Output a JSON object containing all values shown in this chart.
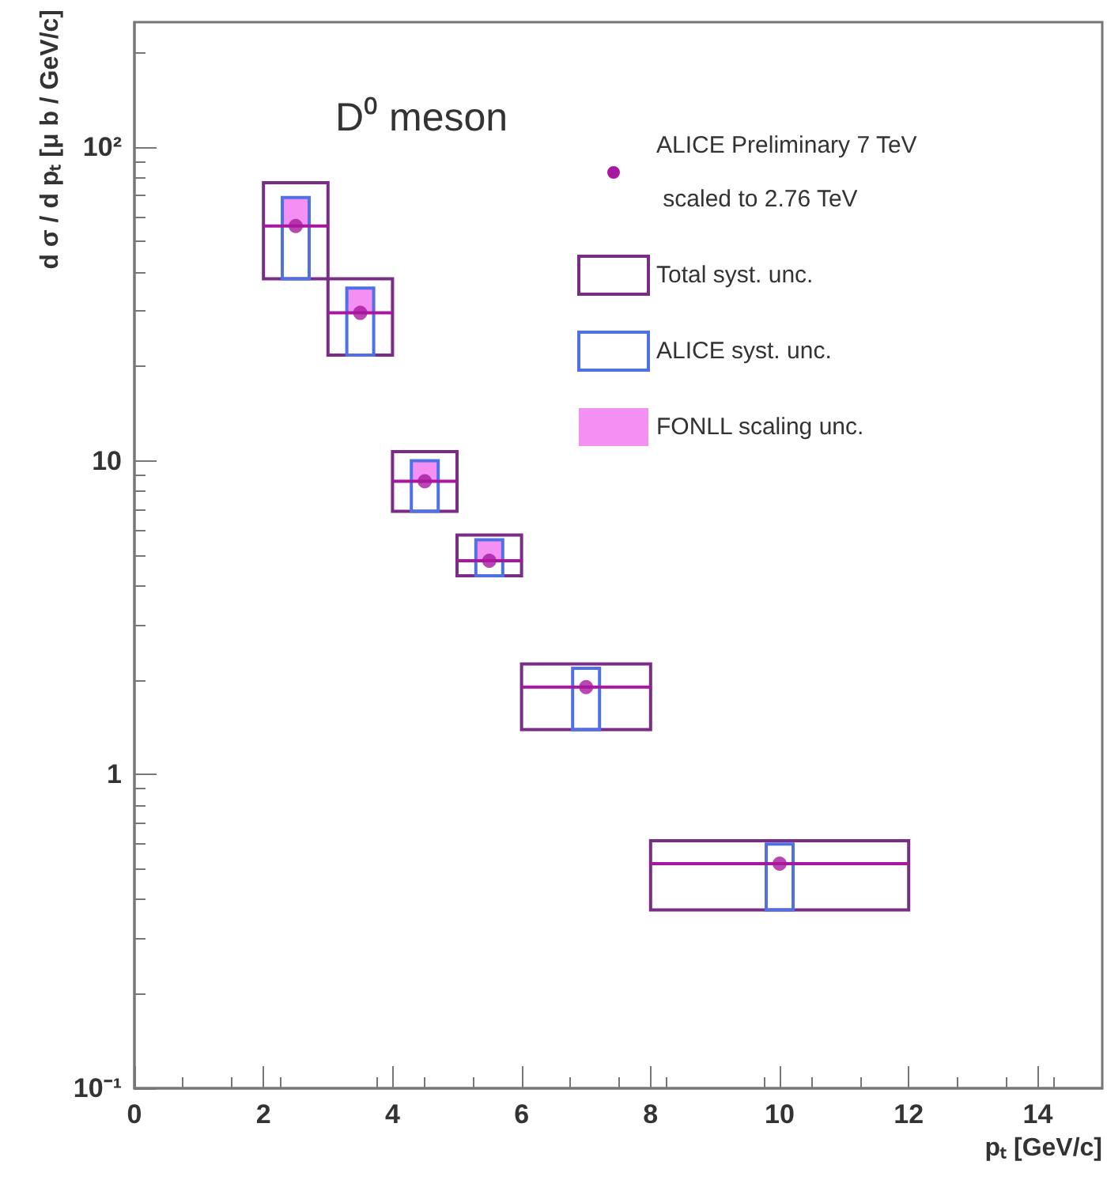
{
  "chart_data": {
    "type": "scatter",
    "xlabel": "pₜ [GeV/c]",
    "ylabel": "d σ / d pₜ [μ b / GeV/c]",
    "annotations": [
      "D⁰ meson"
    ],
    "xlim": [
      0,
      15
    ],
    "xticks": [
      0,
      2,
      4,
      6,
      8,
      10,
      12,
      14
    ],
    "ylim": [
      0.1,
      250
    ],
    "yticks": [
      {
        "value": 0.1,
        "label": "10⁻¹"
      },
      1,
      10,
      {
        "value": 100,
        "label": "10²"
      }
    ],
    "log": "y",
    "legend": "top right",
    "marker": "circle",
    "series": [
      {
        "name": "ALICE Preliminary 7 TeV scaled to 2.76 TeV",
        "color": "#a8189e",
        "x": [
          2.5,
          3.5,
          4.5,
          5.5,
          7,
          10
        ],
        "values": [
          56,
          29.6,
          8.6,
          4.8,
          1.9,
          0.52
        ],
        "xerrors": [
          0.5,
          0.5,
          0.5,
          0.5,
          1,
          2
        ]
      },
      {
        "name": "Total syst. unc.",
        "type": "bar",
        "color": "#7a2c86",
        "line_style": "solid",
        "x": [
          2.5,
          3.5,
          4.5,
          5.5,
          7,
          10
        ],
        "base": [
          38,
          21.7,
          6.9,
          4.3,
          1.39,
          0.37
        ],
        "values": [
          39,
          16.3,
          3.8,
          1.5,
          0.86,
          0.245
        ]
      },
      {
        "name": "ALICE syst. unc.",
        "type": "bar",
        "color": "#5070e6",
        "line_style": "solid",
        "x": [
          2.5,
          3.5,
          4.5,
          5.5,
          7,
          10
        ],
        "base": [
          38,
          21.7,
          6.9,
          4.3,
          1.39,
          0.37
        ],
        "values": [
          31,
          13.8,
          3.1,
          1.3,
          0.79,
          0.23
        ]
      },
      {
        "name": "FONLL scaling unc.",
        "type": "bar",
        "color": "#f490f4",
        "x": [
          2.5,
          3.5,
          4.5,
          5.5
        ],
        "base": [
          56,
          29.6,
          8.6,
          4.8
        ],
        "values": [
          13,
          5.9,
          1.4,
          0.8
        ]
      }
    ]
  }
}
